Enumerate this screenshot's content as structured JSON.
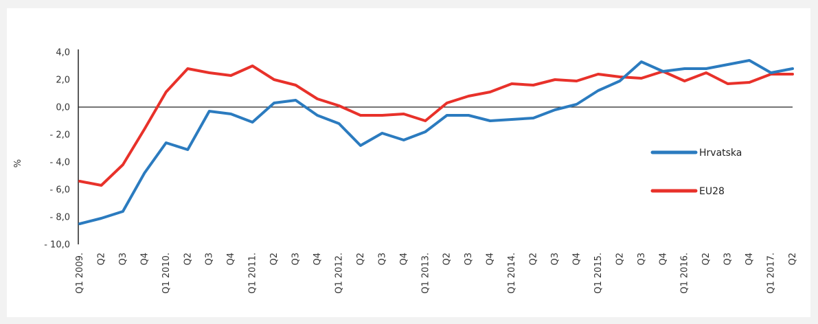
{
  "chart_data": {
    "type": "line",
    "title": "",
    "xlabel": "",
    "ylabel": "%",
    "ylim": [
      -10,
      4
    ],
    "yticks": [
      4,
      2,
      0,
      -2,
      -4,
      -6,
      -8,
      -10
    ],
    "ytick_labels": [
      "4,0",
      "2,0",
      "0,0",
      "- 2,0",
      "- 4,0",
      "- 6,0",
      "- 8,0",
      "- 10,0"
    ],
    "categories": [
      "Q1 2009.",
      "Q2",
      "Q3",
      "Q4",
      "Q1 2010.",
      "Q2",
      "Q3",
      "Q4",
      "Q1 2011.",
      "Q2",
      "Q3",
      "Q4",
      "Q1 2012.",
      "Q2",
      "Q3",
      "Q4",
      "Q1 2013.",
      "Q2",
      "Q3",
      "Q4",
      "Q1 2014.",
      "Q2",
      "Q3",
      "Q4",
      "Q1 2015.",
      "Q2",
      "Q3",
      "Q4",
      "Q1 2016.",
      "Q2",
      "Q3",
      "Q4",
      "Q1 2017.",
      "Q2"
    ],
    "series": [
      {
        "name": "Hrvatska",
        "color": "#2b7bbf",
        "values": [
          -8.5,
          -8.1,
          -7.6,
          -4.8,
          -2.6,
          -3.1,
          -0.3,
          -0.5,
          -1.1,
          0.3,
          0.5,
          -0.6,
          -1.2,
          -2.8,
          -1.9,
          -2.4,
          -1.8,
          -0.6,
          -0.6,
          -1.0,
          -0.9,
          -0.8,
          -0.2,
          0.2,
          1.2,
          1.9,
          3.3,
          2.6,
          2.8,
          2.8,
          3.1,
          3.4,
          2.5,
          2.8
        ]
      },
      {
        "name": "EU28",
        "color": "#e8312a",
        "values": [
          -5.4,
          -5.7,
          -4.2,
          -1.6,
          1.1,
          2.8,
          2.5,
          2.3,
          3.0,
          2.0,
          1.6,
          0.6,
          0.1,
          -0.6,
          -0.6,
          -0.5,
          -1.0,
          0.3,
          0.8,
          1.1,
          1.7,
          1.6,
          2.0,
          1.9,
          2.4,
          2.2,
          2.1,
          2.6,
          1.9,
          2.5,
          1.7,
          1.8,
          2.4,
          2.4
        ]
      }
    ],
    "grid": false,
    "legend_position": "right"
  }
}
